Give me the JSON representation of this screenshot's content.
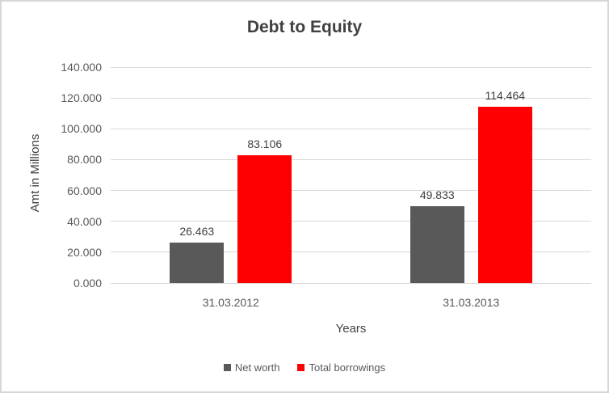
{
  "chart_data": {
    "type": "bar",
    "title": "Debt to Equity",
    "xlabel": "Years",
    "ylabel": "Amt in Millions",
    "categories": [
      "31.03.2012",
      "31.03.2013"
    ],
    "series": [
      {
        "name": "Net worth",
        "color": "#595959",
        "values": [
          26.463,
          49.833
        ]
      },
      {
        "name": "Total borrowings",
        "color": "#ff0000",
        "values": [
          83.106,
          114.464
        ]
      }
    ],
    "data_labels": [
      [
        "26.463",
        "49.833"
      ],
      [
        "83.106",
        "114.464"
      ]
    ],
    "ylim": [
      0,
      140
    ],
    "ytick_step": 20,
    "ytick_labels": [
      "0.000",
      "20.000",
      "40.000",
      "60.000",
      "80.000",
      "100.000",
      "120.000",
      "140.000"
    ],
    "grid": true,
    "legend_position": "bottom"
  },
  "palette": {
    "frame_border": "#d7d7d7",
    "gridline": "#d9d9d9",
    "title_text": "#404040",
    "axis_text": "#595959",
    "data_label_text": "#404040"
  }
}
